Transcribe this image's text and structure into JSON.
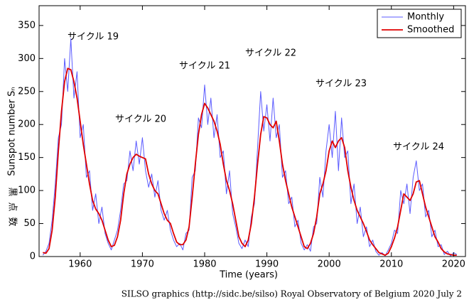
{
  "chart_data": {
    "type": "line",
    "ylabel": "Sunspot number Sₙ",
    "ylabel_ja": "黒点数",
    "xlabel": "Time (years)",
    "footer": "SILSO graphics (http://sidc.be/silso)  Royal Observatory of Belgium  2020 July 2",
    "annotations": [
      "サイクル 19",
      "サイクル 20",
      "サイクル 21",
      "サイクル 22",
      "サイクル 23",
      "サイクル 24"
    ],
    "legend": "upper right",
    "xlim": [
      1953.4,
      2021.9
    ],
    "ylim": [
      0,
      380
    ],
    "xticks": [
      1960,
      1970,
      1980,
      1990,
      2000,
      2010,
      2020
    ],
    "yticks": [
      0,
      50,
      100,
      150,
      200,
      250,
      300,
      350
    ],
    "x": [
      1954,
      1954.5,
      1955,
      1955.5,
      1956,
      1956.5,
      1957,
      1957.5,
      1958,
      1958.5,
      1959,
      1959.5,
      1960,
      1960.5,
      1961,
      1961.5,
      1962,
      1962.5,
      1963,
      1963.5,
      1964,
      1964.5,
      1965,
      1965.5,
      1966,
      1966.5,
      1967,
      1967.5,
      1968,
      1968.5,
      1969,
      1969.5,
      1970,
      1970.5,
      1971,
      1971.5,
      1972,
      1972.5,
      1973,
      1973.5,
      1974,
      1974.5,
      1975,
      1975.5,
      1976,
      1976.5,
      1977,
      1977.5,
      1978,
      1978.5,
      1979,
      1979.5,
      1980,
      1980.5,
      1981,
      1981.5,
      1982,
      1982.5,
      1983,
      1983.5,
      1984,
      1984.5,
      1985,
      1985.5,
      1986,
      1986.5,
      1987,
      1987.5,
      1988,
      1988.5,
      1989,
      1989.5,
      1990,
      1990.5,
      1991,
      1991.5,
      1992,
      1992.5,
      1993,
      1993.5,
      1994,
      1994.5,
      1995,
      1995.5,
      1996,
      1996.5,
      1997,
      1997.5,
      1998,
      1998.5,
      1999,
      1999.5,
      2000,
      2000.5,
      2001,
      2001.5,
      2002,
      2002.5,
      2003,
      2003.5,
      2004,
      2004.5,
      2005,
      2005.5,
      2006,
      2006.5,
      2007,
      2007.5,
      2008,
      2008.5,
      2009,
      2009.5,
      2010,
      2010.5,
      2011,
      2011.5,
      2012,
      2012.5,
      2013,
      2013.5,
      2014,
      2014.5,
      2015,
      2015.5,
      2016,
      2016.5,
      2017,
      2017.5,
      2018,
      2018.5,
      2019,
      2019.5,
      2020,
      2020.5
    ],
    "series": [
      {
        "name": "Monthly",
        "color": "#5b5bff",
        "values": [
          2,
          8,
          20,
          55,
          110,
          180,
          200,
          300,
          250,
          330,
          240,
          280,
          180,
          200,
          120,
          130,
          70,
          95,
          50,
          75,
          35,
          20,
          10,
          25,
          40,
          70,
          110,
          115,
          160,
          130,
          175,
          140,
          180,
          130,
          105,
          125,
          90,
          115,
          70,
          55,
          70,
          40,
          25,
          15,
          20,
          10,
          35,
          40,
          120,
          130,
          210,
          195,
          260,
          200,
          240,
          180,
          215,
          150,
          160,
          95,
          130,
          65,
          45,
          20,
          12,
          25,
          15,
          60,
          80,
          165,
          250,
          190,
          230,
          175,
          240,
          180,
          200,
          120,
          130,
          80,
          90,
          45,
          55,
          20,
          10,
          18,
          8,
          45,
          50,
          120,
          90,
          160,
          200,
          150,
          220,
          130,
          210,
          150,
          160,
          80,
          110,
          50,
          75,
          30,
          45,
          15,
          25,
          8,
          2,
          6,
          1,
          10,
          20,
          40,
          35,
          100,
          80,
          110,
          65,
          120,
          145,
          100,
          110,
          60,
          70,
          30,
          40,
          15,
          18,
          3,
          8,
          1,
          6,
          3
        ]
      },
      {
        "name": "Smoothed",
        "color": "#e00000",
        "values": [
          6,
          5,
          12,
          40,
          90,
          160,
          220,
          265,
          285,
          283,
          265,
          240,
          205,
          170,
          140,
          110,
          85,
          72,
          65,
          55,
          40,
          25,
          15,
          17,
          30,
          55,
          95,
          125,
          140,
          150,
          155,
          152,
          150,
          148,
          125,
          110,
          100,
          95,
          80,
          65,
          55,
          50,
          35,
          22,
          18,
          18,
          25,
          45,
          90,
          140,
          185,
          215,
          232,
          225,
          215,
          205,
          190,
          170,
          140,
          115,
          100,
          80,
          55,
          30,
          20,
          15,
          25,
          50,
          90,
          140,
          185,
          212,
          210,
          200,
          195,
          205,
          175,
          140,
          115,
          95,
          75,
          60,
          45,
          30,
          15,
          12,
          20,
          35,
          60,
          95,
          110,
          130,
          160,
          175,
          165,
          175,
          180,
          165,
          130,
          105,
          85,
          70,
          60,
          50,
          38,
          25,
          18,
          12,
          6,
          4,
          2,
          5,
          15,
          28,
          45,
          70,
          95,
          90,
          85,
          95,
          113,
          115,
          95,
          75,
          60,
          45,
          30,
          22,
          12,
          7,
          4,
          3,
          2,
          2
        ]
      }
    ]
  }
}
